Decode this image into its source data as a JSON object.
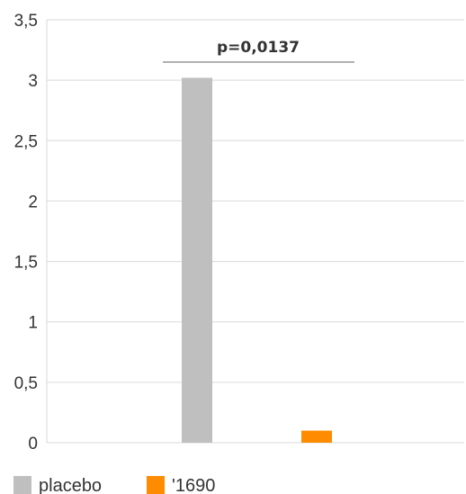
{
  "chart_data": {
    "type": "bar",
    "categories": [
      "placebo",
      "'1690"
    ],
    "series": [
      {
        "name": "placebo",
        "values": [
          3.02,
          null
        ],
        "color": "#bfbfbf"
      },
      {
        "name": "'1690",
        "values": [
          null,
          0.1
        ],
        "color": "#ff8c00"
      }
    ],
    "ylim": [
      0,
      3.5
    ],
    "yticks": [
      "0",
      "0,5",
      "1",
      "1,5",
      "2",
      "2,5",
      "3",
      "3,5"
    ],
    "ytick_values": [
      0,
      0.5,
      1,
      1.5,
      2,
      2.5,
      3,
      3.5
    ],
    "grid": true,
    "annotation": "p=0,0137",
    "legend_position": "bottom-left",
    "xlabel": "",
    "ylabel": "",
    "title": ""
  }
}
